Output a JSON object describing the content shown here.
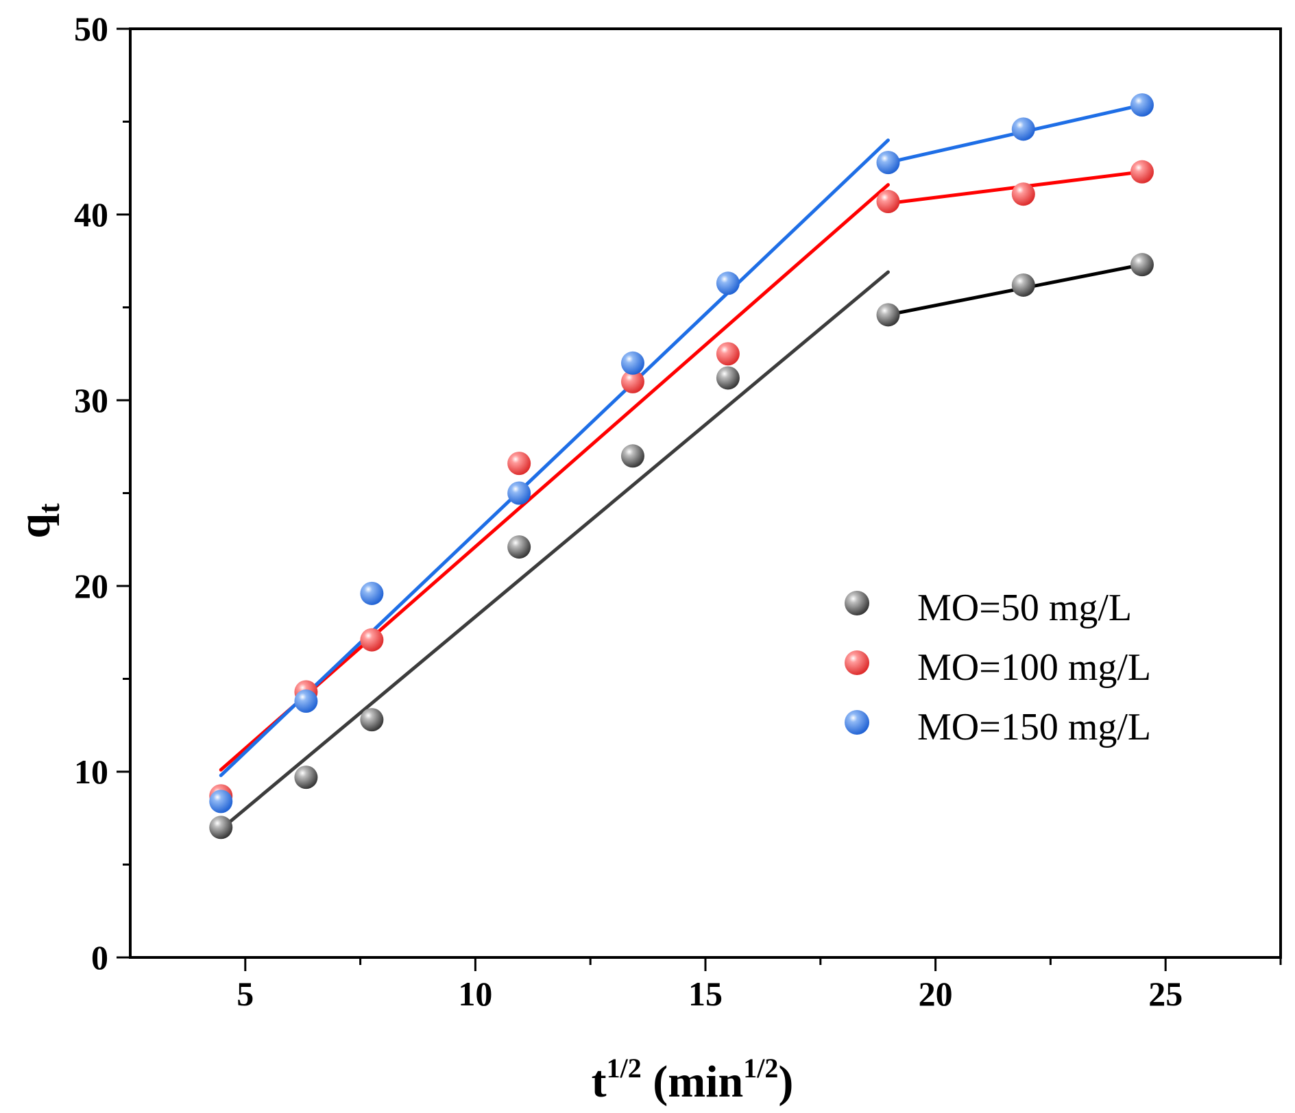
{
  "chart_data": {
    "type": "scatter",
    "title": "",
    "xlabel": {
      "base": "t",
      "sup": "1/2",
      "unit_open": " (min",
      "unit_sup": "1/2",
      "unit_close": ")"
    },
    "ylabel": {
      "base": "q",
      "sub": "t"
    },
    "xlim": [
      2.5,
      27.5
    ],
    "ylim": [
      0,
      50
    ],
    "x_ticks": [
      5,
      10,
      15,
      20,
      25
    ],
    "y_ticks": [
      0,
      10,
      20,
      30,
      40,
      50
    ],
    "x_minor_ticks": [
      7.5,
      12.5,
      17.5,
      22.5,
      27.5
    ],
    "y_minor_ticks": [
      5,
      15,
      25,
      35,
      45
    ],
    "grid": false,
    "legend_position": "center-right",
    "series": [
      {
        "name": "MO=50 mg/L",
        "color": "#505050",
        "line_color_1": "#3c3c3c",
        "line_color_2": "#000000",
        "x": [
          4.47,
          6.32,
          7.75,
          10.95,
          13.42,
          15.49,
          18.97,
          21.91,
          24.49
        ],
        "y": [
          7.0,
          9.7,
          12.8,
          22.1,
          27.0,
          31.2,
          34.6,
          36.2,
          37.3
        ],
        "fit1": {
          "x": [
            4.47,
            18.97
          ],
          "y": [
            6.9,
            36.9
          ]
        },
        "fit2": {
          "x": [
            18.97,
            24.49
          ],
          "y": [
            34.6,
            37.3
          ]
        }
      },
      {
        "name": "MO=100 mg/L",
        "color": "#ee3b3b",
        "line_color_1": "#ff0000",
        "line_color_2": "#ff0000",
        "x": [
          4.47,
          6.32,
          7.75,
          10.95,
          13.42,
          15.49,
          18.97,
          21.91,
          24.49
        ],
        "y": [
          8.7,
          14.3,
          17.1,
          26.6,
          31.0,
          32.5,
          40.7,
          41.1,
          42.3
        ],
        "fit1": {
          "x": [
            4.47,
            18.97
          ],
          "y": [
            10.1,
            41.6
          ]
        },
        "fit2": {
          "x": [
            18.97,
            24.49
          ],
          "y": [
            40.6,
            42.3
          ]
        }
      },
      {
        "name": "MO=150 mg/L",
        "color": "#1e6ee6",
        "line_color_1": "#1e6ee6",
        "line_color_2": "#1e6ee6",
        "x": [
          4.47,
          6.32,
          7.75,
          10.95,
          13.42,
          15.49,
          18.97,
          21.91,
          24.49
        ],
        "y": [
          8.4,
          13.8,
          19.6,
          25.0,
          32.0,
          36.3,
          42.8,
          44.6,
          45.9
        ],
        "fit1": {
          "x": [
            4.47,
            18.97
          ],
          "y": [
            9.8,
            44.0
          ]
        },
        "fit2": {
          "x": [
            18.97,
            24.49
          ],
          "y": [
            42.8,
            45.9
          ]
        }
      }
    ]
  }
}
